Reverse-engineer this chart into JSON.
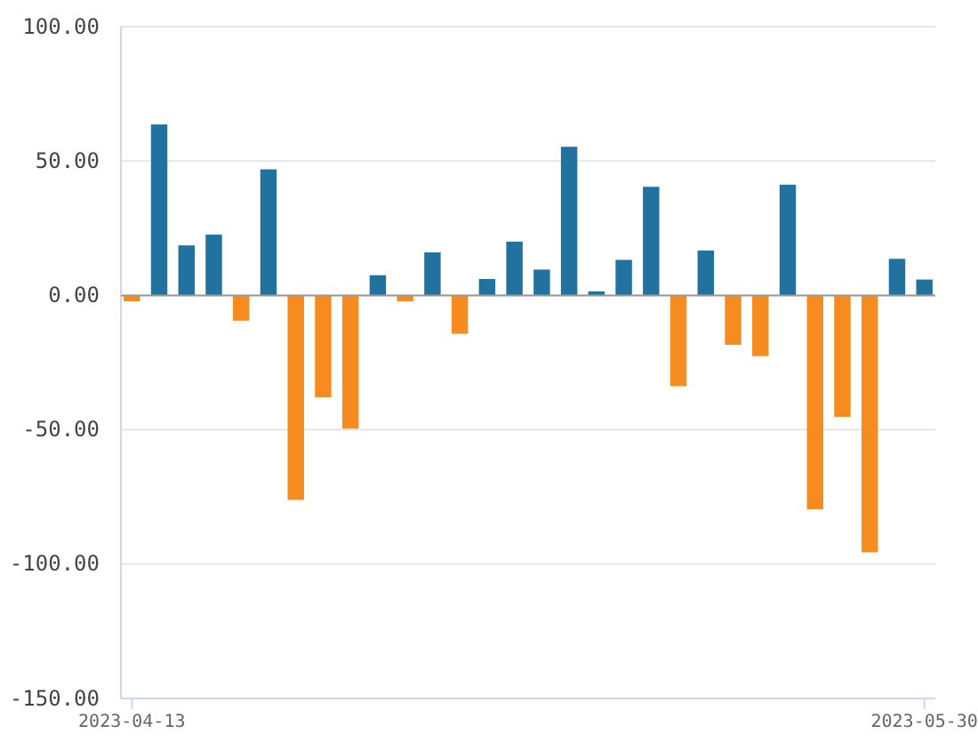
{
  "chart_data": {
    "type": "bar",
    "categories": [
      "2023-04-13",
      null,
      null,
      null,
      null,
      null,
      null,
      null,
      null,
      null,
      null,
      null,
      null,
      null,
      null,
      null,
      null,
      null,
      null,
      null,
      null,
      null,
      null,
      null,
      null,
      null,
      null,
      null,
      null,
      "2023-05-30"
    ],
    "values": [
      -2.2,
      63.6,
      18.6,
      22.6,
      -9.4,
      46.9,
      -76.1,
      -37.9,
      -49.6,
      7.5,
      -2.2,
      16.0,
      -14.3,
      6.1,
      20.0,
      9.6,
      55.3,
      1.5,
      13.2,
      40.4,
      -33.8,
      16.7,
      -18.4,
      -22.6,
      41.2,
      -79.6,
      -45.2,
      -95.6,
      13.6,
      5.9
    ],
    "colors": [
      "#f68b1f",
      "#21729f",
      "#21729f",
      "#21729f",
      "#f68b1f",
      "#21729f",
      "#f68b1f",
      "#f68b1f",
      "#f68b1f",
      "#21729f",
      "#f68b1f",
      "#21729f",
      "#f68b1f",
      "#21729f",
      "#21729f",
      "#21729f",
      "#21729f",
      "#21729f",
      "#21729f",
      "#21729f",
      "#f68b1f",
      "#21729f",
      "#f68b1f",
      "#f68b1f",
      "#21729f",
      "#f68b1f",
      "#f68b1f",
      "#f68b1f",
      "#21729f",
      "#21729f"
    ],
    "ylim": [
      -150,
      100
    ],
    "yticks": [
      {
        "value": -150,
        "label": "-150.00"
      },
      {
        "value": -100,
        "label": "-100.00"
      },
      {
        "value": -50,
        "label": "-50.00"
      },
      {
        "value": 0,
        "label": "0.00"
      },
      {
        "value": 50,
        "label": "50.00"
      },
      {
        "value": 100,
        "label": "100.00"
      }
    ],
    "grid": "y"
  }
}
